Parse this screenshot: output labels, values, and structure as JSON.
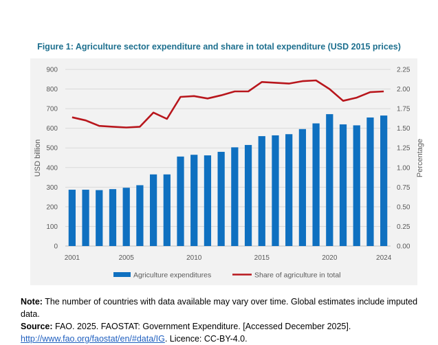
{
  "figure_title": "Figure 1: Agriculture sector expenditure and share in total expenditure (USD 2015 prices)",
  "colors": {
    "bar": "#0f70c0",
    "line": "#b8161c",
    "title": "#1d6f8e",
    "link": "#1f5fbf"
  },
  "chart_data": {
    "type": "bar+line",
    "title": "Figure 1: Agriculture sector expenditure and share in total expenditure (USD 2015 prices)",
    "x": [
      2001,
      2002,
      2003,
      2004,
      2005,
      2006,
      2007,
      2008,
      2009,
      2010,
      2011,
      2012,
      2013,
      2014,
      2015,
      2016,
      2017,
      2018,
      2019,
      2020,
      2021,
      2022,
      2023,
      2024
    ],
    "x_tick_labels": [
      "2001",
      "2005",
      "2010",
      "2015",
      "2020",
      "2024"
    ],
    "ylabel_left": "USD billion",
    "ylabel_right": "Percentage",
    "ylim_left": [
      0,
      900
    ],
    "ylim_right": [
      0,
      2.25
    ],
    "y_ticks_left": [
      "0",
      "100",
      "200",
      "300",
      "400",
      "500",
      "600",
      "700",
      "800",
      "900"
    ],
    "y_ticks_right": [
      "0.00",
      "0.25",
      "0.50",
      "0.75",
      "1.00",
      "1.25",
      "1.50",
      "1.75",
      "2.00",
      "2.25"
    ],
    "grid": true,
    "legend_position": "bottom",
    "series": [
      {
        "name": "Agriculture expenditures",
        "type": "bar",
        "axis": "left",
        "values": [
          287,
          287,
          285,
          290,
          297,
          310,
          365,
          365,
          456,
          465,
          462,
          480,
          503,
          515,
          560,
          564,
          570,
          596,
          625,
          672,
          620,
          615,
          655,
          665
        ]
      },
      {
        "name": "Share of agriculture in total",
        "type": "line",
        "axis": "right",
        "values": [
          1.64,
          1.6,
          1.53,
          1.52,
          1.51,
          1.52,
          1.7,
          1.62,
          1.9,
          1.91,
          1.88,
          1.92,
          1.97,
          1.97,
          2.09,
          2.08,
          2.07,
          2.1,
          2.11,
          2.0,
          1.85,
          1.89,
          1.96,
          1.97
        ]
      }
    ]
  },
  "note": {
    "note_label": "Note:",
    "note_text": " The number of countries with data available may vary over time. Global estimates include imputed data.",
    "source_label": "Source:",
    "source_text": " FAO. 2025. FAOSTAT: Government Expenditure. [Accessed December 2025].",
    "link_text": "http://www.fao.org/faostat/en/#data/IG",
    "licence_text": ". Licence: CC-BY-4.0."
  }
}
